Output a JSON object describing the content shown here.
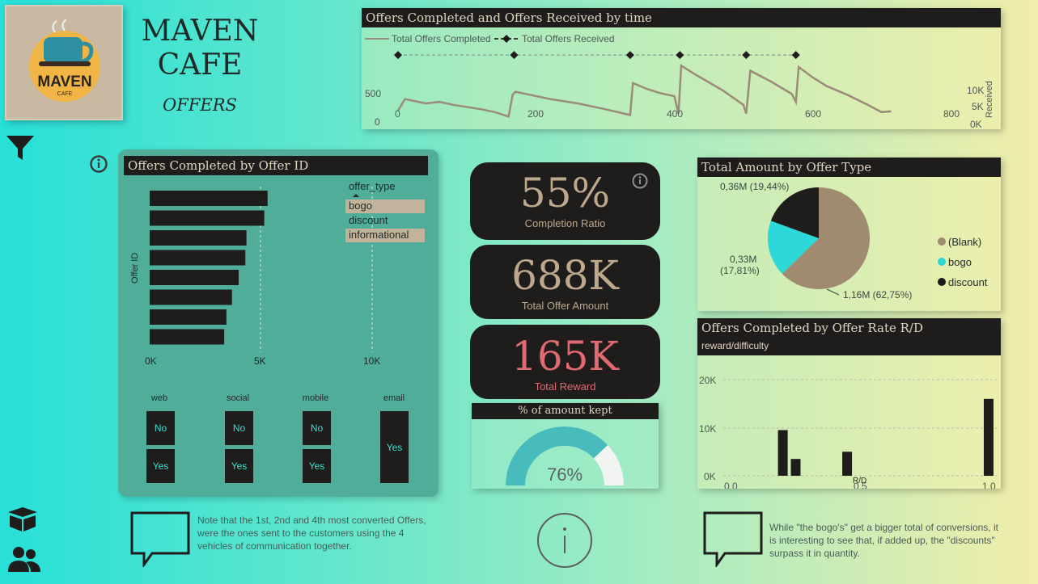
{
  "brand": {
    "line1": "MAVEN",
    "line2": "CAFE",
    "subtitle": "OFFERS",
    "logo_word": "MAVEN",
    "logo_sub": "CAFE"
  },
  "timeline": {
    "title": "Offers Completed and Offers Received by time",
    "legend": [
      "Total Offers Completed",
      "Total Offers Received"
    ],
    "left_ticks": [
      "500",
      "0"
    ],
    "right_ticks": [
      "10K",
      "5K",
      "0K"
    ],
    "right_axis_label": "Received",
    "x_ticks": [
      "0",
      "200",
      "400",
      "600",
      "800"
    ]
  },
  "offer_id_chart": {
    "title": "Offers Completed by Offer ID",
    "y_label": "Offer ID",
    "x_ticks": [
      "0K",
      "5K",
      "10K"
    ],
    "legend_title": "offer_type",
    "legend_items": [
      "bogo",
      "discount",
      "informational"
    ]
  },
  "channels": [
    {
      "label": "web",
      "options": [
        "No",
        "Yes"
      ]
    },
    {
      "label": "social",
      "options": [
        "No",
        "Yes"
      ]
    },
    {
      "label": "mobile",
      "options": [
        "No",
        "Yes"
      ]
    },
    {
      "label": "email",
      "options": [
        "Yes"
      ]
    }
  ],
  "kpis": {
    "completion": {
      "value": "55%",
      "label": "Completion Ratio"
    },
    "amount": {
      "value": "688K",
      "label": "Total Offer Amount"
    },
    "reward": {
      "value": "165K",
      "label": "Total Reward"
    }
  },
  "gauge": {
    "title": "% of amount kept",
    "value_label": "76%",
    "value": 0.76
  },
  "pie": {
    "title": "Total Amount by Offer Type",
    "labels": [
      "0,36M (19,44%)",
      "0,33M",
      "(17,81%)",
      "1,16M (62,75%)"
    ],
    "legend": [
      "(Blank)",
      "bogo",
      "discount"
    ]
  },
  "rd_chart": {
    "title": "Offers Completed by Offer Rate R/D",
    "subtitle": "reward/difficulty",
    "y_ticks": [
      "20K",
      "10K",
      "0K"
    ],
    "x_ticks": [
      "0,0",
      "0,5",
      "1,0"
    ],
    "x_label": "R/D"
  },
  "notes": {
    "left": "Note that the 1st, 2nd and 4th most converted Offers, were the ones sent to the customers using the 4 vehicles of communication together.",
    "right": "While \"the bogo's\" get a bigger total of conversions, it is interesting to see that, if added up, the \"discounts\" surpass it in quantity."
  },
  "colors": {
    "dark": "#1f1c1c",
    "tan": "#bda88c",
    "teal": "#35e0d0",
    "reward": "#e06a72"
  },
  "chart_data": [
    {
      "type": "line",
      "x": [
        0,
        10,
        20,
        40,
        60,
        80,
        100,
        120,
        140,
        160,
        166,
        170,
        190,
        220,
        260,
        300,
        336,
        340,
        360,
        380,
        400,
        406,
        410,
        430,
        470,
        500,
        504,
        510,
        540,
        570,
        576,
        580,
        600,
        620,
        650,
        680,
        700,
        714
      ],
      "series": [
        {
          "name": "Total Offers Completed",
          "values": [
            100,
            260,
            240,
            200,
            220,
            180,
            150,
            120,
            80,
            20,
            320,
            360,
            320,
            260,
            200,
            120,
            40,
            480,
            400,
            340,
            300,
            60,
            720,
            600,
            380,
            180,
            60,
            650,
            500,
            330,
            220,
            700,
            560,
            440,
            320,
            180,
            80,
            90
          ]
        },
        {
          "name": "Total Offers Received",
          "x": [
            0,
            168,
            336,
            408,
            504,
            576
          ],
          "values": [
            12700,
            12700,
            12700,
            12700,
            12700,
            12700
          ]
        }
      ],
      "title": "Offers Completed and Offers Received by time",
      "xlim": [
        0,
        800
      ],
      "ylim": [
        0,
        800
      ],
      "y2lim": [
        0,
        15000
      ]
    },
    {
      "type": "bar",
      "orientation": "horizontal",
      "values": [
        5300,
        5150,
        4350,
        4300,
        4000,
        3700,
        3450,
        3350
      ],
      "xlim": [
        0,
        10000
      ],
      "title": "Offers Completed by Offer ID",
      "ylabel": "Offer ID"
    },
    {
      "type": "pie",
      "labels": [
        "(Blank)",
        "bogo",
        "discount"
      ],
      "values": [
        62.75,
        17.81,
        19.44
      ],
      "title": "Total Amount by Offer Type"
    },
    {
      "type": "bar",
      "x": [
        0.2,
        0.25,
        0.45,
        1.0
      ],
      "values": [
        9500,
        3500,
        5000,
        16000
      ],
      "xlim": [
        0,
        1.0
      ],
      "ylim": [
        0,
        20000
      ],
      "title": "Offers Completed by Offer Rate R/D",
      "xlabel": "R/D"
    }
  ]
}
